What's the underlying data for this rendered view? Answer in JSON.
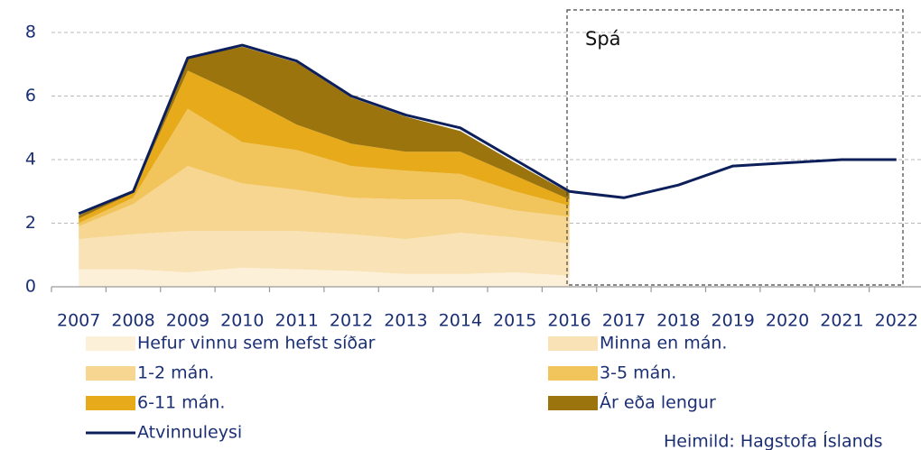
{
  "chart_data": {
    "type": "stacked_area_line",
    "categories": [
      "2007",
      "2008",
      "2009",
      "2010",
      "2011",
      "2012",
      "2013",
      "2014",
      "2015",
      "2016",
      "2017",
      "2018",
      "2019",
      "2020",
      "2021",
      "2022"
    ],
    "ylim": [
      0,
      8
    ],
    "yticks": [
      0,
      2,
      4,
      6,
      8
    ],
    "grid": true,
    "annotation": "Spá",
    "source": "Heimild: Hagstofa Íslands",
    "series": [
      {
        "name": "Hefur vinnu sem hefst síðar",
        "kind": "area",
        "color": "#fcf0d8",
        "values": [
          0.55,
          0.55,
          0.45,
          0.6,
          0.55,
          0.5,
          0.4,
          0.4,
          0.45,
          0.35,
          null,
          null,
          null,
          null,
          null,
          null
        ]
      },
      {
        "name": "Minna en mán.",
        "kind": "area",
        "color": "#f9e3b6",
        "values": [
          0.95,
          1.1,
          1.3,
          1.15,
          1.2,
          1.15,
          1.1,
          1.3,
          1.1,
          1.0,
          null,
          null,
          null,
          null,
          null,
          null
        ]
      },
      {
        "name": "1-2 mán.",
        "kind": "area",
        "color": "#f6d690",
        "values": [
          0.4,
          0.95,
          2.05,
          1.5,
          1.3,
          1.15,
          1.25,
          1.05,
          0.85,
          0.85,
          null,
          null,
          null,
          null,
          null,
          null
        ]
      },
      {
        "name": "3-5 mán.",
        "kind": "area",
        "color": "#f2c55c",
        "values": [
          0.1,
          0.2,
          1.8,
          1.3,
          1.25,
          1.0,
          0.9,
          0.8,
          0.6,
          0.35,
          null,
          null,
          null,
          null,
          null,
          null
        ]
      },
      {
        "name": "6-11 mán.",
        "kind": "area",
        "color": "#e6aa1a",
        "values": [
          0.15,
          0.15,
          1.2,
          1.45,
          0.8,
          0.7,
          0.6,
          0.7,
          0.5,
          0.2,
          null,
          null,
          null,
          null,
          null,
          null
        ]
      },
      {
        "name": "Ár eða lengur",
        "kind": "area",
        "color": "#9c740e",
        "values": [
          0.1,
          0.05,
          0.4,
          1.55,
          1.95,
          1.45,
          1.1,
          0.65,
          0.4,
          0.2,
          null,
          null,
          null,
          null,
          null,
          null
        ]
      },
      {
        "name": "Atvinnuleysi",
        "kind": "line",
        "color": "#0c1f5a",
        "values": [
          2.3,
          3.0,
          7.2,
          7.6,
          7.1,
          6.0,
          5.4,
          5.0,
          4.0,
          3.0,
          2.8,
          3.2,
          3.8,
          3.9,
          4.0,
          4.0
        ]
      }
    ]
  }
}
